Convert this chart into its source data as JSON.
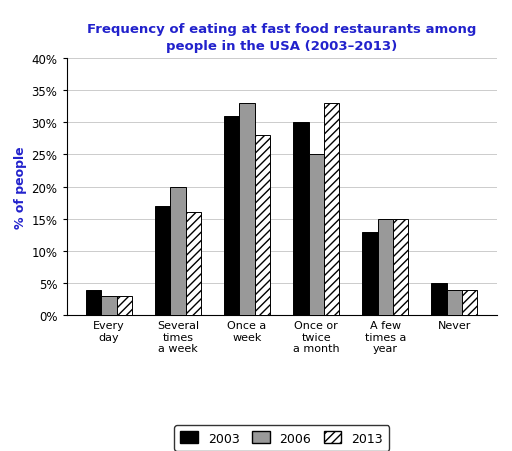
{
  "title": "Frequency of eating at fast food restaurants among\npeople in the USA (2003–2013)",
  "ylabel": "% of people",
  "categories": [
    "Every\nday",
    "Several\ntimes\na week",
    "Once a\nweek",
    "Once or\ntwice\na month",
    "A few\ntimes a\nyear",
    "Never"
  ],
  "series": {
    "2003": [
      4,
      17,
      31,
      30,
      13,
      5
    ],
    "2006": [
      3,
      20,
      33,
      25,
      15,
      4
    ],
    "2013": [
      3,
      16,
      28,
      33,
      15,
      4
    ]
  },
  "ylim": [
    0,
    40
  ],
  "yticks": [
    0,
    5,
    10,
    15,
    20,
    25,
    30,
    35,
    40
  ],
  "bar_colors": {
    "2003": "#000000",
    "2006": "#999999",
    "2013": "white"
  },
  "hatch": {
    "2003": "",
    "2006": "",
    "2013": "////"
  },
  "title_color": "#2222CC",
  "ylabel_color": "#2222CC",
  "bar_width": 0.22,
  "figsize": [
    5.12,
    4.52
  ],
  "dpi": 100
}
